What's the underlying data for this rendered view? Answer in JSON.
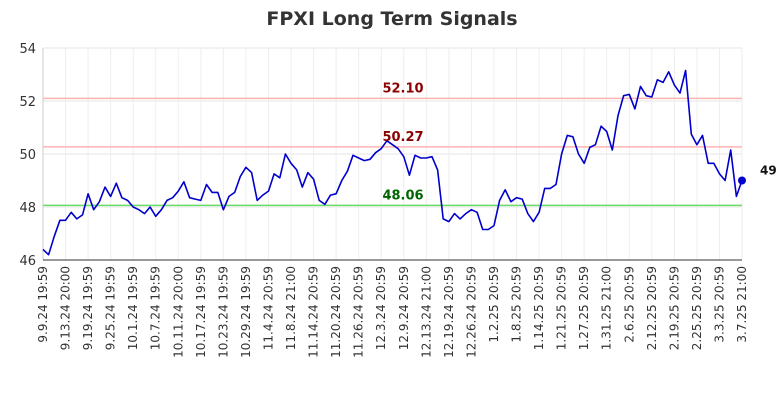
{
  "chart_data": {
    "type": "line",
    "title": "FPXI Long Term Signals",
    "ylim": [
      46,
      54
    ],
    "yticks": [
      "46",
      "48",
      "50",
      "52",
      "54"
    ],
    "xticks": [
      "9.9.24 19:59",
      "9.13.24 20:00",
      "9.19.24 19:59",
      "9.25.24 19:59",
      "10.1.24 19:59",
      "10.7.24 19:59",
      "10.11.24 20:00",
      "10.17.24 19:59",
      "10.23.24 19:59",
      "10.29.24 19:59",
      "11.4.24 20:59",
      "11.8.24 21:00",
      "11.14.24 20:59",
      "11.20.24 20:59",
      "11.26.24 20:59",
      "12.3.24 20:59",
      "12.9.24 20:59",
      "12.13.24 21:00",
      "12.19.24 20:59",
      "12.26.24 20:59",
      "1.2.25 20:59",
      "1.8.25 20:59",
      "1.14.25 20:59",
      "1.21.25 20:59",
      "1.27.25 20:59",
      "1.31.25 21:00",
      "2.6.25 20:59",
      "2.12.25 20:59",
      "2.19.25 20:59",
      "2.25.25 20:59",
      "3.3.25 20:59",
      "3.7.25 21:00"
    ],
    "series": [
      {
        "color": "#0000cc",
        "values": [
          46.4,
          46.2,
          46.9,
          47.5,
          47.5,
          47.8,
          47.55,
          47.7,
          48.5,
          47.9,
          48.2,
          48.75,
          48.4,
          48.9,
          48.35,
          48.25,
          48.0,
          47.9,
          47.75,
          48.0,
          47.65,
          47.9,
          48.25,
          48.35,
          48.6,
          48.95,
          48.35,
          48.3,
          48.25,
          48.85,
          48.55,
          48.55,
          47.9,
          48.4,
          48.55,
          49.15,
          49.5,
          49.3,
          48.25,
          48.45,
          48.6,
          49.25,
          49.1,
          50.0,
          49.65,
          49.4,
          48.75,
          49.3,
          49.05,
          48.25,
          48.1,
          48.45,
          48.5,
          49.0,
          49.35,
          49.95,
          49.85,
          49.75,
          49.8,
          50.05,
          50.2,
          50.5,
          50.35,
          50.2,
          49.9,
          49.2,
          49.95,
          49.85,
          49.85,
          49.9,
          49.4,
          47.55,
          47.45,
          47.75,
          47.55,
          47.75,
          47.9,
          47.8,
          47.15,
          47.15,
          47.3,
          48.25,
          48.65,
          48.2,
          48.35,
          48.3,
          47.75,
          47.45,
          47.8,
          48.7,
          48.7,
          48.85,
          50.0,
          50.7,
          50.65,
          50.0,
          49.65,
          50.25,
          50.35,
          51.05,
          50.85,
          50.15,
          51.45,
          52.2,
          52.25,
          51.7,
          52.55,
          52.2,
          52.15,
          52.8,
          52.7,
          53.1,
          52.6,
          52.3,
          53.15,
          50.75,
          50.35,
          50.7,
          49.65,
          49.65,
          49.25,
          49.0,
          50.15,
          48.4,
          49.0
        ]
      }
    ],
    "levels": [
      {
        "value": 52.1,
        "label": "52.10",
        "line_color": "#ffb3b3",
        "text_color": "#8b0000"
      },
      {
        "value": 50.27,
        "label": "50.27",
        "line_color": "#ffb3b3",
        "text_color": "#8b0000"
      },
      {
        "value": 48.06,
        "label": "48.06",
        "line_color": "#66dd66",
        "text_color": "#006400"
      }
    ],
    "last_label": "49",
    "grid": true
  }
}
